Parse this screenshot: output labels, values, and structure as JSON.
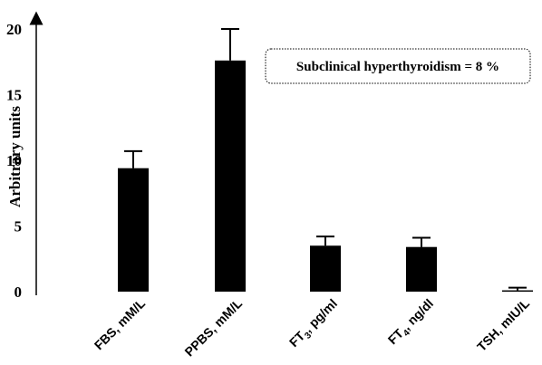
{
  "chart_data": {
    "type": "bar",
    "categories": [
      "FBS, mM/L",
      "PPBS, mM/L",
      "FT3, pg/ml",
      "FT4, ng/dl",
      "TSH, mIU/L"
    ],
    "category_parts": [
      {
        "pre": "FBS, mM/L",
        "sub": "",
        "post": ""
      },
      {
        "pre": "PPBS, mM/L",
        "sub": "",
        "post": ""
      },
      {
        "pre": "FT",
        "sub": "3",
        "post": ", pg/ml"
      },
      {
        "pre": "FT",
        "sub": "4",
        "post": ", ng/dl"
      },
      {
        "pre": "TSH, mIU/L",
        "sub": "",
        "post": ""
      }
    ],
    "values": [
      9.4,
      17.6,
      3.5,
      3.4,
      0.1
    ],
    "errors": [
      1.3,
      2.4,
      0.7,
      0.7,
      0.2
    ],
    "ylabel": "Arbitrary units",
    "ylim": [
      0,
      20
    ],
    "yticks": [
      "0",
      "5",
      "10",
      "15",
      "20"
    ],
    "annotation": "Subclinical hyperthyroidism = 8 %",
    "grid": false,
    "legend": "none",
    "bar_color": "#000000"
  }
}
